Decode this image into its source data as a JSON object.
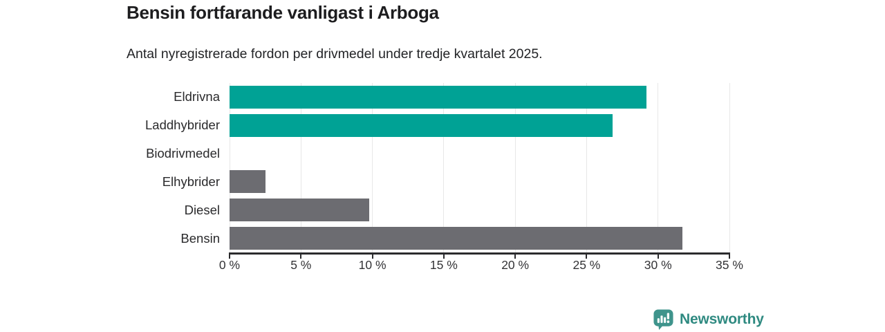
{
  "header": {
    "title": "Bensin fortfarande vanligast i Arboga",
    "subtitle": "Antal nyregistrerade fordon per drivmedel under tredje kvartalet 2025."
  },
  "chart_data": {
    "type": "bar",
    "orientation": "horizontal",
    "title": "Bensin fortfarande vanligast i Arboga",
    "subtitle": "Antal nyregistrerade fordon per drivmedel under tredje kvartalet 2025.",
    "categories": [
      "Eldrivna",
      "Laddhybrider",
      "Biodrivmedel",
      "Elhybrider",
      "Diesel",
      "Bensin"
    ],
    "values": [
      29.2,
      26.8,
      0,
      2.5,
      9.8,
      31.7
    ],
    "unit": "%",
    "bar_colors": [
      "#00a295",
      "#00a295",
      "#6c6c71",
      "#6c6c71",
      "#6c6c71",
      "#6c6c71"
    ],
    "highlight_color": "#00a295",
    "default_color": "#6c6c71",
    "xlim": [
      0,
      35
    ],
    "xticks": [
      0,
      5,
      10,
      15,
      20,
      25,
      30,
      35
    ],
    "xtick_labels": [
      "0 %",
      "5 %",
      "10 %",
      "15 %",
      "20 %",
      "25 %",
      "30 %",
      "35 %"
    ],
    "xlabel": "",
    "ylabel": "",
    "grid": true,
    "legend": "none"
  },
  "footer": {
    "brand": "Newsworthy",
    "brand_color": "#2f8a81",
    "icon": "newsworthy-speech-bubble-chart-icon",
    "icon_color": "#3f948c"
  },
  "colors": {
    "background": "#ffffff",
    "gridline": "#e7e7e7",
    "axis": "#2b2b2d",
    "text": "#1f1f1f"
  }
}
